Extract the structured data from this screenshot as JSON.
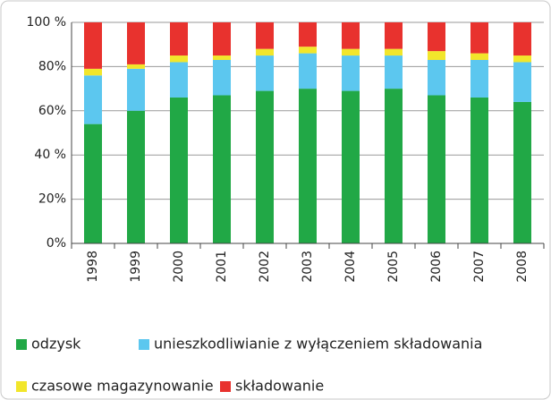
{
  "chart_data": {
    "type": "stacked_bar",
    "categories": [
      "1998",
      "1999",
      "2000",
      "2001",
      "2002",
      "2003",
      "2004",
      "2005",
      "2006",
      "2007",
      "2008"
    ],
    "series": [
      {
        "name": "odzysk",
        "color": "#21a846",
        "values": [
          54,
          60,
          66,
          67,
          69,
          70,
          69,
          70,
          67,
          66,
          64
        ]
      },
      {
        "name": "unieszkodliwianie z wyłączeniem składowania",
        "color": "#5cc7ef",
        "values": [
          22,
          19,
          16,
          16,
          16,
          16,
          16,
          15,
          16,
          17,
          18
        ]
      },
      {
        "name": "czasowe magazynowanie",
        "color": "#f2e62b",
        "values": [
          3,
          2,
          3,
          2,
          3,
          3,
          3,
          3,
          4,
          3,
          3
        ]
      },
      {
        "name": "składowanie",
        "color": "#e8322e",
        "values": [
          21,
          19,
          15,
          15,
          12,
          11,
          12,
          12,
          13,
          14,
          15
        ]
      }
    ],
    "ylim": [
      0,
      100
    ],
    "yticks": [
      {
        "value": 0,
        "label": "0%"
      },
      {
        "value": 20,
        "label": "20%"
      },
      {
        "value": 40,
        "label": "40 %"
      },
      {
        "value": 60,
        "label": "60%"
      },
      {
        "value": 80,
        "label": "80%"
      },
      {
        "value": 100,
        "label": "100 %"
      }
    ],
    "grid": true
  }
}
